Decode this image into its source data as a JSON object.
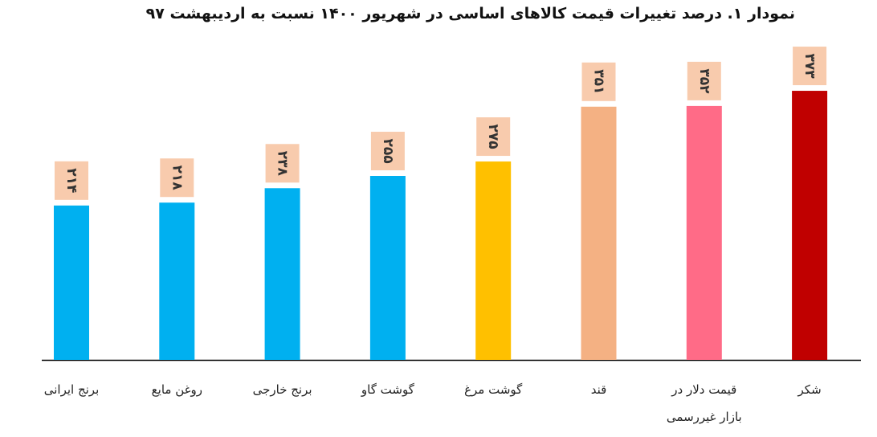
{
  "chart_data": {
    "type": "bar",
    "title": "نمودار ۱. درصد تغییرات قیمت کالاهای اساسی در شهریور ۱۴۰۰ نسبت به اردیبهشت ۹۷",
    "categories": [
      "برنج ایرانی",
      "روغن مایع",
      "برنج خارجی",
      "گوشت گاو",
      "گوشت مرغ",
      "قند",
      "قیمت دلار در بازار غیررسمی",
      "شکر"
    ],
    "values": [
      214,
      218,
      238,
      255,
      275,
      351,
      352,
      373
    ],
    "value_labels": [
      "۲۱۴",
      "۲۱۸",
      "۲۳۸",
      "۲۵۵",
      "۲۷۵",
      "۳۵۱",
      "۳۵۲",
      "۳۷۳"
    ],
    "colors": [
      "#00b0f0",
      "#00b0f0",
      "#00b0f0",
      "#00b0f0",
      "#ffc000",
      "#f4b183",
      "#ff6b87",
      "#c00000"
    ],
    "label_box_color": "#f8cbad"
  }
}
